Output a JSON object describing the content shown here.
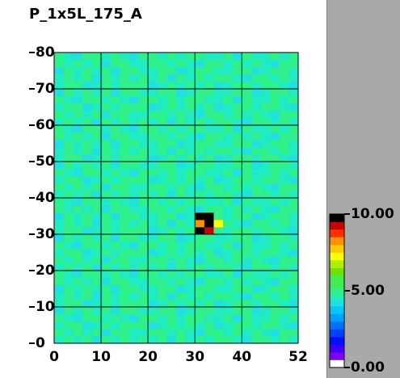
{
  "chart_data": {
    "type": "heatmap",
    "title": "P_1x5L_175_A",
    "xlim": [
      0,
      52
    ],
    "ylim": [
      0,
      80
    ],
    "xticks": [
      0,
      10,
      20,
      30,
      40,
      52
    ],
    "yticks": [
      0,
      10,
      20,
      30,
      40,
      50,
      60,
      70,
      80
    ],
    "grid": true,
    "colorbar_lim": [
      0,
      10
    ],
    "colorbar_ticks": [
      {
        "value": 0,
        "label": "0.00"
      },
      {
        "value": 5,
        "label": "5.00"
      },
      {
        "value": 10,
        "label": "10.00"
      }
    ],
    "colorscale": [
      [
        0,
        "#ffffff"
      ],
      [
        0.5,
        "#7a00ff"
      ],
      [
        1,
        "#3c00ff"
      ],
      [
        1.5,
        "#0010ff"
      ],
      [
        2,
        "#0040ff"
      ],
      [
        2.5,
        "#0070ff"
      ],
      [
        3,
        "#00a0ff"
      ],
      [
        3.5,
        "#00c8ff"
      ],
      [
        4,
        "#20e0e0"
      ],
      [
        4.4,
        "#20ecc4"
      ],
      [
        4.7,
        "#30f08a"
      ],
      [
        5.2,
        "#40ee50"
      ],
      [
        6,
        "#70e000"
      ],
      [
        6.5,
        "#b0ee00"
      ],
      [
        7,
        "#ffff00"
      ],
      [
        7.5,
        "#ffc800"
      ],
      [
        8,
        "#ff9000"
      ],
      [
        8.5,
        "#ff3000"
      ],
      [
        9,
        "#cc0000"
      ],
      [
        9.5,
        "#000000"
      ]
    ],
    "z": [
      [
        4.6,
        4.9,
        4.5,
        4.8,
        4.3,
        4.9,
        4.6,
        5.1,
        4.5,
        4.8,
        4.6,
        4.9,
        4.3,
        4.8,
        4.6,
        4.9,
        4.5,
        5.1,
        4.8,
        4.6,
        4.3,
        4.9,
        4.8,
        4.5,
        4.9,
        4.6
      ],
      [
        4.9,
        4.5,
        4.8,
        4.6,
        5.1,
        4.3,
        4.8,
        4.9,
        4.6,
        4.5,
        4.9,
        4.8,
        4.6,
        5.1,
        4.5,
        4.3,
        4.9,
        4.8,
        4.6,
        4.9,
        4.5,
        4.8,
        4.6,
        4.3,
        4.8,
        4.9
      ],
      [
        4.5,
        4.8,
        4.9,
        4.3,
        4.6,
        4.8,
        4.5,
        4.9,
        4.8,
        5.1,
        4.3,
        4.6,
        4.9,
        4.5,
        4.8,
        4.6,
        4.9,
        4.3,
        4.5,
        4.8,
        4.9,
        4.6,
        5.1,
        4.8,
        4.5,
        4.3
      ],
      [
        4.8,
        4.6,
        4.3,
        4.9,
        4.8,
        4.5,
        4.9,
        4.6,
        4.3,
        4.8,
        4.9,
        4.5,
        4.8,
        4.6,
        4.9,
        4.8,
        4.6,
        4.5,
        4.9,
        4.3,
        4.8,
        4.6,
        4.5,
        4.9,
        4.6,
        4.8
      ],
      [
        4.3,
        4.9,
        4.6,
        4.8,
        4.5,
        4.9,
        4.3,
        4.8,
        4.9,
        4.6,
        4.5,
        4.8,
        4.9,
        4.3,
        4.6,
        4.9,
        4.8,
        4.5,
        4.6,
        4.8,
        4.9,
        4.3,
        4.6,
        4.8,
        4.9,
        4.5
      ],
      [
        4.5,
        4.8,
        4.9,
        4.3,
        4.6,
        4.8,
        4.5,
        4.9,
        4.8,
        5.1,
        4.3,
        4.6,
        4.9,
        4.5,
        4.8,
        4.6,
        4.9,
        4.3,
        4.5,
        4.8,
        4.9,
        4.6,
        5.1,
        4.8,
        4.5,
        4.3
      ],
      [
        4.6,
        4.9,
        4.5,
        4.8,
        4.3,
        4.9,
        4.6,
        5.1,
        4.5,
        4.8,
        4.6,
        4.9,
        4.3,
        4.8,
        4.6,
        4.9,
        4.5,
        5.1,
        4.8,
        4.6,
        4.3,
        4.9,
        4.8,
        4.5,
        4.9,
        4.6
      ],
      [
        4.3,
        4.9,
        4.6,
        4.8,
        4.5,
        4.9,
        4.3,
        4.8,
        4.9,
        4.6,
        4.5,
        4.8,
        4.9,
        4.3,
        4.6,
        4.9,
        4.8,
        4.5,
        4.6,
        4.8,
        4.9,
        4.3,
        4.6,
        4.8,
        4.9,
        4.5
      ],
      [
        4.9,
        4.5,
        4.8,
        4.6,
        5.1,
        4.3,
        4.8,
        4.9,
        4.6,
        4.5,
        4.9,
        4.8,
        4.6,
        5.1,
        4.5,
        4.3,
        4.9,
        4.8,
        4.6,
        4.9,
        4.5,
        4.8,
        4.6,
        4.3,
        4.8,
        4.9
      ],
      [
        4.8,
        4.6,
        4.3,
        4.9,
        4.8,
        4.5,
        4.9,
        4.6,
        4.3,
        4.8,
        4.9,
        4.5,
        4.8,
        4.6,
        4.9,
        4.8,
        4.6,
        4.5,
        4.9,
        4.3,
        4.8,
        4.6,
        4.5,
        4.9,
        4.6,
        4.8
      ],
      [
        4.6,
        4.9,
        4.5,
        4.8,
        4.3,
        4.9,
        4.6,
        5.1,
        4.5,
        4.8,
        4.6,
        4.9,
        4.3,
        4.8,
        4.6,
        4.9,
        4.5,
        5.1,
        4.8,
        4.6,
        4.3,
        4.9,
        4.8,
        4.5,
        4.9,
        4.6
      ],
      [
        4.9,
        4.5,
        4.8,
        4.6,
        5.1,
        4.3,
        4.8,
        4.9,
        4.6,
        4.5,
        4.9,
        4.8,
        4.6,
        5.1,
        4.5,
        4.3,
        4.9,
        4.8,
        4.6,
        4.9,
        4.5,
        4.8,
        4.6,
        4.3,
        4.8,
        4.9
      ],
      [
        4.5,
        4.8,
        4.9,
        4.3,
        4.6,
        4.8,
        4.5,
        4.9,
        4.8,
        5.1,
        4.3,
        4.6,
        4.9,
        4.5,
        4.8,
        4.6,
        4.9,
        4.3,
        4.5,
        4.8,
        4.9,
        4.6,
        5.1,
        4.8,
        4.5,
        4.3
      ],
      [
        4.8,
        4.6,
        4.3,
        4.9,
        4.8,
        4.5,
        4.9,
        4.6,
        4.3,
        4.8,
        4.9,
        4.5,
        4.8,
        4.6,
        4.9,
        4.8,
        4.6,
        4.5,
        4.9,
        4.3,
        4.8,
        4.6,
        4.5,
        4.9,
        4.6,
        4.8
      ],
      [
        4.3,
        4.9,
        4.6,
        4.8,
        4.5,
        4.9,
        4.3,
        4.8,
        4.9,
        4.6,
        4.5,
        4.8,
        4.9,
        4.3,
        4.6,
        4.9,
        4.8,
        4.5,
        4.6,
        4.8,
        4.9,
        4.3,
        4.6,
        4.8,
        4.9,
        4.5
      ],
      [
        4.5,
        4.8,
        4.9,
        4.3,
        4.6,
        4.8,
        4.5,
        4.9,
        4.8,
        5.1,
        4.3,
        4.6,
        4.9,
        4.5,
        4.8,
        10,
        9,
        5,
        4.5,
        4.8,
        4.9,
        4.6,
        5.1,
        4.8,
        4.5,
        4.3
      ],
      [
        4.6,
        4.9,
        4.5,
        4.8,
        4.3,
        4.9,
        4.6,
        5.1,
        4.5,
        4.8,
        4.6,
        4.9,
        4.3,
        4.8,
        4.6,
        8,
        10,
        7,
        4.8,
        4.6,
        4.3,
        4.9,
        4.8,
        4.5,
        4.9,
        4.6
      ],
      [
        4.3,
        4.9,
        4.6,
        4.8,
        4.5,
        4.9,
        4.3,
        4.8,
        4.9,
        4.6,
        4.5,
        4.8,
        4.9,
        4.3,
        4.6,
        9.6,
        10,
        4.9,
        4.6,
        4.8,
        4.9,
        4.3,
        4.6,
        4.8,
        4.9,
        4.5
      ],
      [
        4.9,
        4.5,
        4.8,
        4.6,
        5.1,
        4.3,
        4.8,
        4.9,
        4.6,
        4.5,
        4.9,
        4.8,
        4.6,
        5.1,
        4.5,
        4.3,
        4.9,
        4.8,
        4.6,
        4.9,
        4.5,
        4.8,
        4.6,
        4.3,
        4.8,
        4.9
      ],
      [
        4.8,
        4.6,
        4.3,
        4.9,
        4.8,
        4.5,
        4.9,
        4.6,
        4.3,
        4.8,
        4.9,
        4.5,
        4.8,
        4.6,
        4.9,
        4.8,
        4.6,
        4.5,
        4.9,
        4.3,
        4.8,
        4.6,
        4.5,
        4.9,
        4.6,
        4.8
      ],
      [
        4.6,
        4.9,
        4.5,
        4.8,
        4.3,
        4.9,
        4.6,
        5.1,
        4.5,
        4.8,
        4.6,
        4.9,
        4.3,
        4.8,
        4.6,
        4.9,
        4.5,
        5.1,
        4.8,
        4.6,
        4.3,
        4.9,
        4.8,
        4.5,
        4.9,
        4.6
      ],
      [
        4.9,
        4.5,
        4.8,
        4.6,
        5.1,
        4.3,
        4.8,
        4.9,
        4.6,
        4.5,
        4.9,
        4.8,
        4.6,
        5.1,
        4.5,
        4.3,
        4.9,
        4.8,
        4.6,
        4.9,
        4.5,
        4.8,
        4.6,
        4.3,
        4.8,
        4.9
      ],
      [
        4.5,
        4.8,
        4.9,
        4.3,
        4.6,
        4.8,
        4.5,
        4.9,
        4.8,
        5.1,
        4.3,
        4.6,
        4.9,
        4.5,
        4.8,
        4.6,
        4.9,
        4.3,
        4.5,
        4.8,
        4.9,
        4.6,
        5.1,
        4.8,
        4.5,
        4.3
      ],
      [
        4.8,
        4.6,
        4.3,
        4.9,
        4.8,
        4.5,
        4.9,
        4.6,
        4.3,
        4.8,
        4.9,
        4.5,
        4.8,
        4.6,
        4.9,
        4.8,
        4.6,
        4.5,
        4.9,
        4.3,
        4.8,
        4.6,
        4.5,
        4.9,
        4.6,
        4.8
      ],
      [
        4.3,
        4.9,
        4.6,
        4.8,
        4.5,
        4.9,
        4.3,
        4.8,
        4.9,
        4.6,
        4.5,
        4.8,
        4.9,
        4.3,
        4.6,
        4.9,
        4.8,
        4.5,
        4.6,
        4.8,
        4.9,
        4.3,
        4.6,
        4.8,
        4.9,
        4.5
      ],
      [
        4.5,
        4.8,
        4.9,
        4.3,
        4.6,
        4.8,
        4.5,
        4.9,
        4.8,
        5.1,
        4.3,
        4.6,
        4.9,
        4.5,
        4.8,
        4.6,
        4.9,
        4.3,
        4.5,
        4.8,
        4.9,
        4.6,
        5.1,
        4.8,
        4.5,
        4.3
      ],
      [
        4.6,
        4.9,
        4.5,
        4.8,
        4.3,
        4.9,
        4.6,
        5.1,
        4.5,
        4.8,
        4.6,
        4.9,
        4.3,
        4.8,
        4.6,
        4.9,
        4.5,
        5.1,
        4.8,
        4.6,
        4.3,
        4.9,
        4.8,
        4.5,
        4.9,
        4.6
      ],
      [
        4.3,
        4.9,
        4.6,
        4.8,
        4.5,
        4.9,
        4.3,
        4.8,
        4.9,
        4.6,
        4.5,
        4.8,
        4.9,
        4.3,
        4.6,
        4.9,
        4.8,
        4.5,
        4.6,
        4.8,
        4.9,
        4.3,
        4.6,
        4.8,
        4.9,
        4.5
      ],
      [
        4.9,
        4.5,
        4.8,
        4.6,
        5.1,
        4.3,
        4.8,
        4.9,
        4.6,
        4.5,
        4.9,
        4.8,
        4.6,
        5.1,
        4.5,
        4.3,
        4.9,
        4.8,
        4.6,
        4.9,
        4.5,
        4.8,
        4.6,
        4.3,
        4.8,
        4.9
      ],
      [
        4.8,
        4.6,
        4.3,
        4.9,
        4.8,
        4.5,
        4.9,
        4.6,
        4.3,
        4.8,
        4.9,
        4.5,
        4.8,
        4.6,
        4.9,
        4.8,
        4.6,
        4.5,
        4.9,
        4.3,
        4.8,
        4.6,
        4.5,
        4.9,
        4.6,
        4.8
      ],
      [
        4.6,
        4.9,
        4.5,
        4.8,
        4.3,
        4.9,
        4.6,
        5.1,
        4.5,
        4.8,
        4.6,
        4.9,
        4.3,
        4.8,
        4.6,
        4.9,
        4.5,
        5.1,
        4.8,
        4.6,
        4.3,
        4.9,
        4.8,
        4.5,
        4.9,
        4.6
      ],
      [
        4.9,
        4.5,
        4.8,
        4.6,
        5.1,
        4.3,
        4.8,
        4.9,
        4.6,
        4.5,
        4.9,
        4.8,
        4.6,
        5.1,
        4.5,
        4.3,
        4.9,
        4.8,
        4.6,
        4.9,
        4.5,
        4.8,
        4.6,
        4.3,
        4.8,
        4.9
      ],
      [
        4.5,
        4.8,
        4.9,
        4.3,
        4.6,
        4.8,
        4.5,
        4.9,
        4.8,
        5.1,
        4.3,
        4.6,
        4.9,
        4.5,
        4.8,
        4.6,
        4.9,
        4.3,
        4.5,
        4.8,
        4.9,
        4.6,
        5.1,
        4.8,
        4.5,
        4.3
      ],
      [
        4.8,
        4.6,
        4.3,
        4.9,
        4.8,
        4.5,
        4.9,
        4.6,
        4.3,
        4.8,
        4.9,
        4.5,
        4.8,
        4.6,
        4.9,
        4.8,
        4.6,
        4.5,
        4.9,
        4.3,
        4.8,
        4.6,
        4.5,
        4.9,
        4.6,
        4.8
      ],
      [
        4.3,
        4.9,
        4.6,
        4.8,
        4.5,
        4.9,
        4.3,
        4.8,
        4.9,
        4.6,
        4.5,
        4.8,
        4.9,
        4.3,
        4.6,
        4.9,
        4.8,
        4.5,
        4.6,
        4.8,
        4.9,
        4.3,
        4.6,
        4.8,
        4.9,
        4.5
      ],
      [
        4.5,
        4.8,
        4.9,
        4.3,
        4.6,
        4.8,
        4.5,
        4.9,
        4.8,
        5.1,
        4.3,
        4.6,
        4.9,
        4.5,
        4.8,
        4.6,
        4.9,
        4.3,
        4.5,
        4.8,
        4.9,
        4.6,
        5.1,
        4.8,
        4.5,
        4.3
      ],
      [
        4.6,
        4.9,
        4.5,
        4.8,
        4.3,
        4.9,
        4.6,
        5.1,
        4.5,
        4.8,
        4.6,
        4.9,
        4.3,
        4.8,
        4.6,
        4.9,
        4.5,
        5.1,
        4.8,
        4.6,
        4.3,
        4.9,
        4.8,
        4.5,
        4.9,
        4.6
      ],
      [
        4.3,
        4.9,
        4.6,
        4.8,
        4.5,
        4.9,
        4.3,
        4.8,
        4.9,
        4.6,
        4.5,
        4.8,
        4.9,
        4.3,
        4.6,
        4.9,
        4.8,
        4.5,
        4.6,
        4.8,
        4.9,
        4.3,
        4.6,
        4.8,
        4.9,
        4.5
      ],
      [
        4.9,
        4.5,
        4.8,
        4.6,
        5.1,
        4.3,
        4.8,
        4.9,
        4.6,
        4.5,
        4.9,
        4.8,
        4.6,
        5.1,
        4.5,
        4.3,
        4.9,
        4.8,
        4.6,
        4.9,
        4.5,
        4.8,
        4.6,
        4.3,
        4.8,
        4.9
      ],
      [
        4.8,
        4.6,
        4.3,
        4.9,
        4.8,
        4.5,
        4.9,
        4.6,
        4.3,
        4.8,
        4.9,
        4.5,
        4.8,
        4.6,
        4.9,
        4.8,
        4.6,
        4.5,
        4.9,
        4.3,
        4.8,
        4.6,
        4.5,
        4.9,
        4.6,
        4.8
      ]
    ]
  }
}
